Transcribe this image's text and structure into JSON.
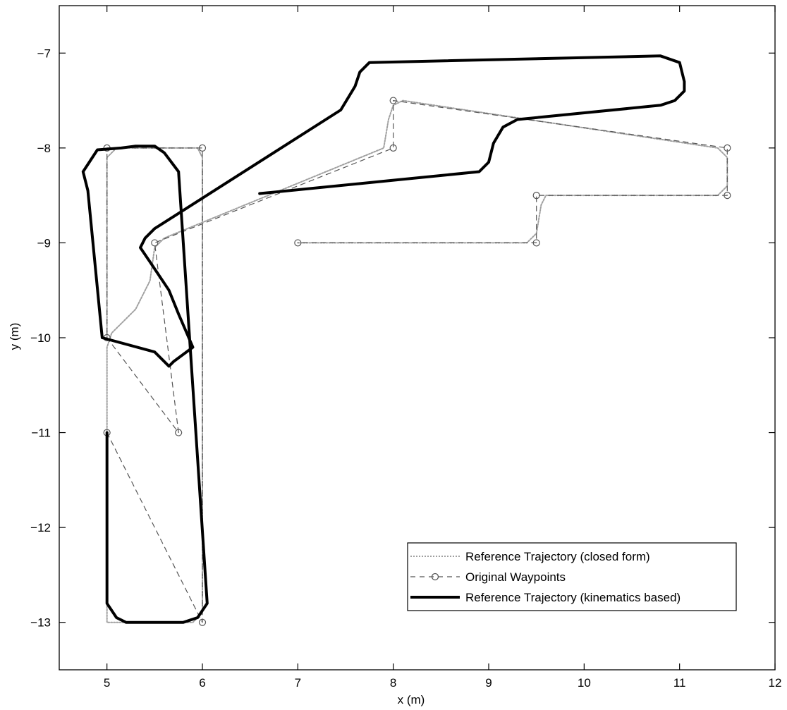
{
  "chart_data": {
    "type": "line",
    "title": "",
    "xlabel": "x (m)",
    "ylabel": "y (m)",
    "xlim": [
      4.5,
      12
    ],
    "ylim": [
      -13.5,
      -6.5
    ],
    "xticks": [
      5,
      6,
      7,
      8,
      9,
      10,
      11,
      12
    ],
    "yticks": [
      -7,
      -8,
      -9,
      -10,
      -11,
      -12,
      -13
    ],
    "xtick_labels": [
      "5",
      "6",
      "7",
      "8",
      "9",
      "10",
      "11",
      "12"
    ],
    "ytick_labels": [
      "−7",
      "−8",
      "−9",
      "−10",
      "−11",
      "−12",
      "−13"
    ],
    "grid": false,
    "legend_position": "bottom-right",
    "series": [
      {
        "name": "Reference Trajectory (closed form)",
        "style": "dotted",
        "color": "#a0a0a0",
        "x": [
          7,
          9.4,
          9.5,
          9.55,
          9.6,
          11.4,
          11.5,
          11.5,
          11.4,
          8.1,
          8,
          7.95,
          7.9,
          5.6,
          5.5,
          5.45,
          5.3,
          5.05,
          5,
          5,
          5,
          5.1,
          5.9,
          6,
          6,
          6,
          5.95,
          5.9,
          5.1,
          5,
          5,
          5
        ],
        "y": [
          -9,
          -9,
          -8.9,
          -8.6,
          -8.5,
          -8.5,
          -8.4,
          -8.1,
          -8,
          -7.5,
          -7.55,
          -7.7,
          -8,
          -8.95,
          -9.05,
          -9.4,
          -9.7,
          -9.95,
          -10.1,
          -11,
          -13,
          -13,
          -13,
          -12.9,
          -12,
          -8.1,
          -8,
          -8,
          -8,
          -8.1,
          -9,
          -10
        ]
      },
      {
        "name": "Original Waypoints",
        "style": "dashed-circle",
        "color": "#555555",
        "x": [
          5,
          6,
          6,
          5,
          5,
          5.75,
          5.5,
          8,
          8,
          11.5,
          11.5,
          9.5,
          9.5,
          7
        ],
        "y": [
          -11,
          -13,
          -8,
          -8,
          -10,
          -11,
          -9,
          -8,
          -7.5,
          -8,
          -8.5,
          -8.5,
          -9,
          -9
        ]
      },
      {
        "name": "Reference Trajectory (kinematics based)",
        "style": "solid-thick",
        "color": "#000000",
        "x": [
          5,
          5,
          5.1,
          5.2,
          5.8,
          5.95,
          6.05,
          5.75,
          5.6,
          5.5,
          5.4,
          5.3,
          5.15,
          4.9,
          4.75,
          4.8,
          4.95,
          5.5,
          5.65,
          5.7,
          5.9,
          5.75,
          5.65,
          5.45,
          5.35,
          5.4,
          5.5,
          7.45,
          7.6,
          7.65,
          7.75,
          10.8,
          11,
          11.05,
          11.05,
          10.95,
          10.8,
          9.3,
          9.15,
          9.05,
          9,
          8.9,
          6.6
        ],
        "y": [
          -11,
          -12.8,
          -12.95,
          -13,
          -13,
          -12.95,
          -12.8,
          -8.25,
          -8.05,
          -7.98,
          -7.98,
          -7.98,
          -8,
          -8.02,
          -8.25,
          -8.45,
          -10,
          -10.15,
          -10.3,
          -10.25,
          -10.1,
          -9.75,
          -9.5,
          -9.2,
          -9.05,
          -8.95,
          -8.85,
          -7.6,
          -7.35,
          -7.2,
          -7.1,
          -7.03,
          -7.1,
          -7.3,
          -7.4,
          -7.5,
          -7.55,
          -7.7,
          -7.78,
          -7.95,
          -8.15,
          -8.25,
          -8.48
        ]
      }
    ]
  }
}
